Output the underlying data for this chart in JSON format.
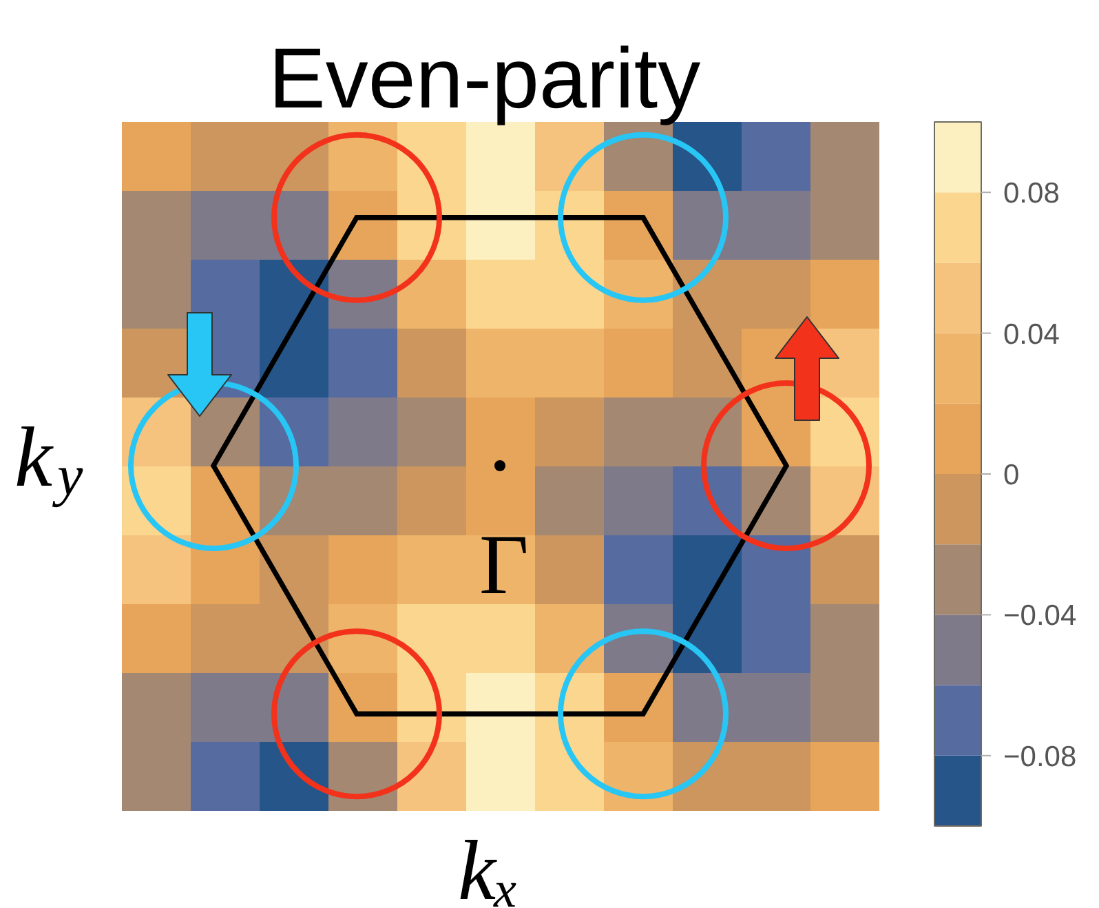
{
  "chart_data": {
    "type": "heatmap",
    "title": "Even-parity",
    "xlabel": "kₓ",
    "ylabel": "k$_{y}$",
    "categories": [
      null,
      null,
      null,
      null,
      null,
      null,
      null,
      null,
      null,
      null,
      null
    ],
    "y_categories": [
      null,
      null,
      null,
      null,
      null,
      null,
      null,
      null,
      null,
      null
    ],
    "cells": [
      [
        0.01,
        -0.01,
        -0.01,
        0.03,
        0.07,
        0.09,
        0.05,
        -0.03,
        -0.09,
        -0.07,
        -0.03
      ],
      [
        -0.03,
        -0.05,
        -0.05,
        0.01,
        0.07,
        0.09,
        0.07,
        0.01,
        -0.05,
        -0.05,
        -0.03
      ],
      [
        -0.03,
        -0.07,
        -0.09,
        -0.05,
        0.03,
        0.07,
        0.07,
        0.03,
        -0.01,
        -0.01,
        0.01
      ],
      [
        -0.01,
        -0.07,
        -0.09,
        -0.07,
        -0.01,
        0.03,
        0.03,
        0.01,
        -0.01,
        0.01,
        0.05
      ],
      [
        0.05,
        -0.03,
        -0.07,
        -0.05,
        -0.03,
        0.01,
        -0.01,
        -0.03,
        -0.03,
        0.01,
        0.07
      ],
      [
        0.07,
        0.01,
        -0.03,
        -0.03,
        -0.01,
        0.01,
        -0.03,
        -0.05,
        -0.07,
        -0.03,
        0.05
      ],
      [
        0.05,
        0.01,
        -0.01,
        0.01,
        0.03,
        0.03,
        -0.01,
        -0.07,
        -0.09,
        -0.07,
        -0.01
      ],
      [
        0.01,
        -0.01,
        -0.01,
        0.03,
        0.07,
        0.07,
        0.03,
        -0.05,
        -0.09,
        -0.07,
        -0.03
      ],
      [
        -0.03,
        -0.05,
        -0.05,
        0.01,
        0.07,
        0.09,
        0.07,
        0.01,
        -0.05,
        -0.05,
        -0.03
      ],
      [
        -0.03,
        -0.07,
        -0.09,
        -0.03,
        0.05,
        0.09,
        0.07,
        0.03,
        -0.01,
        -0.01,
        0.01
      ]
    ],
    "clim": [
      -0.1,
      0.1
    ],
    "cticks": [
      0.08,
      0.04,
      0,
      {
        "value": -0.04,
        "label": "−0.04"
      },
      {
        "value": -0.08,
        "label": "−0.08"
      }
    ],
    "colors": [
      "#26558a",
      "#566ca0",
      "#7e7a8a",
      "#a48872",
      "#cc965e",
      "#e6a55a",
      "#eeb46a",
      "#f5c37d",
      "#fbd68f",
      "#fdf0c0"
    ],
    "annotations": [
      "Γ"
    ]
  }
}
